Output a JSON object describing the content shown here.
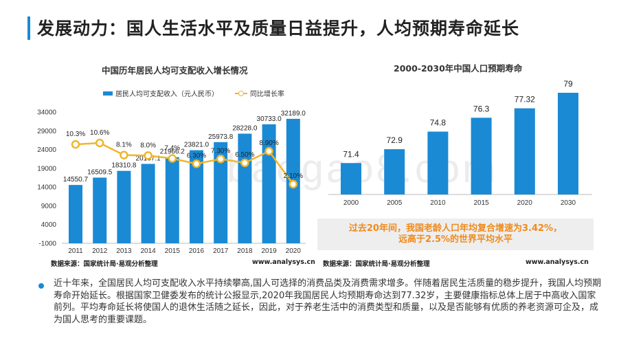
{
  "page": {
    "title": "发展动力：国人生活水平及质量日益提升，人均预期寿命延长",
    "accent_color": "#1a8ad4"
  },
  "chart_left": {
    "title": "中国历年居民人均可支配收入增长情况",
    "legend_bar": "居民人均可支配收入（元人民币）",
    "legend_line": "同比增长率",
    "source": "数据来源：国家统计局·易观分析整理",
    "url": "www.analysys.cn"
  },
  "chart_right": {
    "title": "2000-2030年中国人口预期寿命",
    "source": "数据来源：国家统计局·易观分析整理",
    "url": "www.analysys.cn",
    "callout_line1": "过去20年间，我国老龄人口年均复合增速为3.42%，",
    "callout_line2": "远高于2.5%的世界平均水平"
  },
  "body_text": "近十年来，全国居民人均可支配收入水平持续攀高,国人可选择的消费品类及消费需求增多。伴随着居民生活质量的稳步提升，我国人均预期寿命开始延长。根据国家卫健委发布的统计公报显示,2020年我国居民人均预期寿命达到77.32岁，主要健康指标总体上居于中高收入国家前列。平均寿命延长将使国人的退休生活随之延长，因此，对于养老生活中的消费类型和质量，以及是否能够有优质的养老资源可企及，成为国人思考的重要课题。",
  "watermark": "baogao8.com",
  "chart_data": [
    {
      "type": "bar+line",
      "title": "中国历年居民人均可支配收入增长情况",
      "categories": [
        "2011",
        "2012",
        "2013",
        "2014",
        "2015",
        "2016",
        "2017",
        "2018",
        "2019",
        "2020"
      ],
      "series": [
        {
          "name": "居民人均可支配收入（元人民币）",
          "type": "bar",
          "color": "#1a8ad4",
          "values": [
            14550.7,
            16509.5,
            18310.8,
            20167.1,
            21966.2,
            23821.0,
            25973.8,
            28228.0,
            30733.0,
            32189.0
          ],
          "labels": [
            "14550.7",
            "16509.5",
            "18310.8",
            "20167.1",
            "21966.2",
            "23821.0",
            "25973.8",
            "28228.0",
            "30733.0",
            "32189.0"
          ]
        },
        {
          "name": "同比增长率",
          "type": "line",
          "color": "#f1b52c",
          "values": [
            10.3,
            10.6,
            8.1,
            8.0,
            7.4,
            6.3,
            7.3,
            6.5,
            8.9,
            2.1
          ],
          "labels": [
            "10.3%",
            "10.6%",
            "8.1%",
            "8.0%",
            "7.4%",
            "6.30%",
            "7.30%",
            "6.50%",
            "8.90%",
            "2.10%"
          ]
        }
      ],
      "yticks": [
        "34000",
        "29000",
        "24000",
        "19000",
        "14000",
        "9000",
        "4000",
        "-1000"
      ],
      "ylim": [
        -1000,
        34000
      ],
      "legend_position": "top-left"
    },
    {
      "type": "bar",
      "title": "2000-2030年中国人口预期寿命",
      "categories": [
        "2000",
        "2005",
        "2010",
        "2015",
        "2020",
        "2030"
      ],
      "values": [
        71.4,
        72.9,
        74.8,
        76.3,
        77.32,
        79
      ],
      "labels": [
        "71.4",
        "72.9",
        "74.8",
        "76.3",
        "77.32",
        "79"
      ],
      "color": "#1a8ad4",
      "ylim": [
        68,
        79
      ]
    }
  ]
}
